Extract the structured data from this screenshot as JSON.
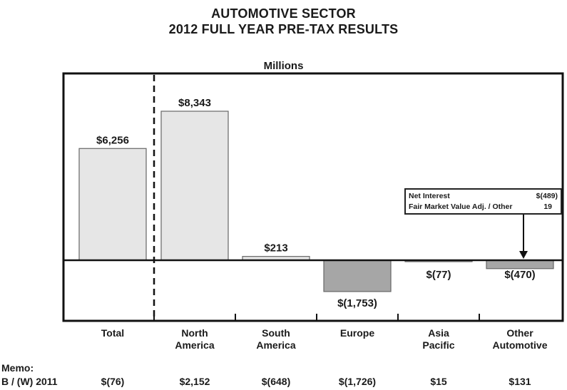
{
  "title_line1": "AUTOMOTIVE SECTOR",
  "title_line2": "2012 FULL YEAR PRE-TAX RESULTS",
  "units_label": "Millions",
  "chart_data": {
    "type": "bar",
    "categories": [
      "Total",
      "North\nAmerica",
      "South\nAmerica",
      "Europe",
      "Asia\nPacific",
      "Other\nAutomotive"
    ],
    "values": [
      6256,
      8343,
      213,
      -1753,
      -77,
      -470
    ],
    "value_labels": [
      "$6,256",
      "$8,343",
      "$213",
      "$(1,753)",
      "$(77)",
      "$(470)"
    ],
    "colors": {
      "positive": "#e6e6e6",
      "negative": "#a6a6a6",
      "border": "#666666"
    },
    "grid": false,
    "legend": "none"
  },
  "callout": {
    "rows": [
      {
        "label": "Net Interest",
        "value": "$(489)"
      },
      {
        "label": "Fair Market Value Adj. / Other",
        "value": "19"
      }
    ]
  },
  "memo": {
    "title": "Memo:",
    "row_label": "B / (W) 2011",
    "values": [
      "$(76)",
      "$2,152",
      "$(648)",
      "$(1,726)",
      "$15",
      "$131"
    ]
  }
}
